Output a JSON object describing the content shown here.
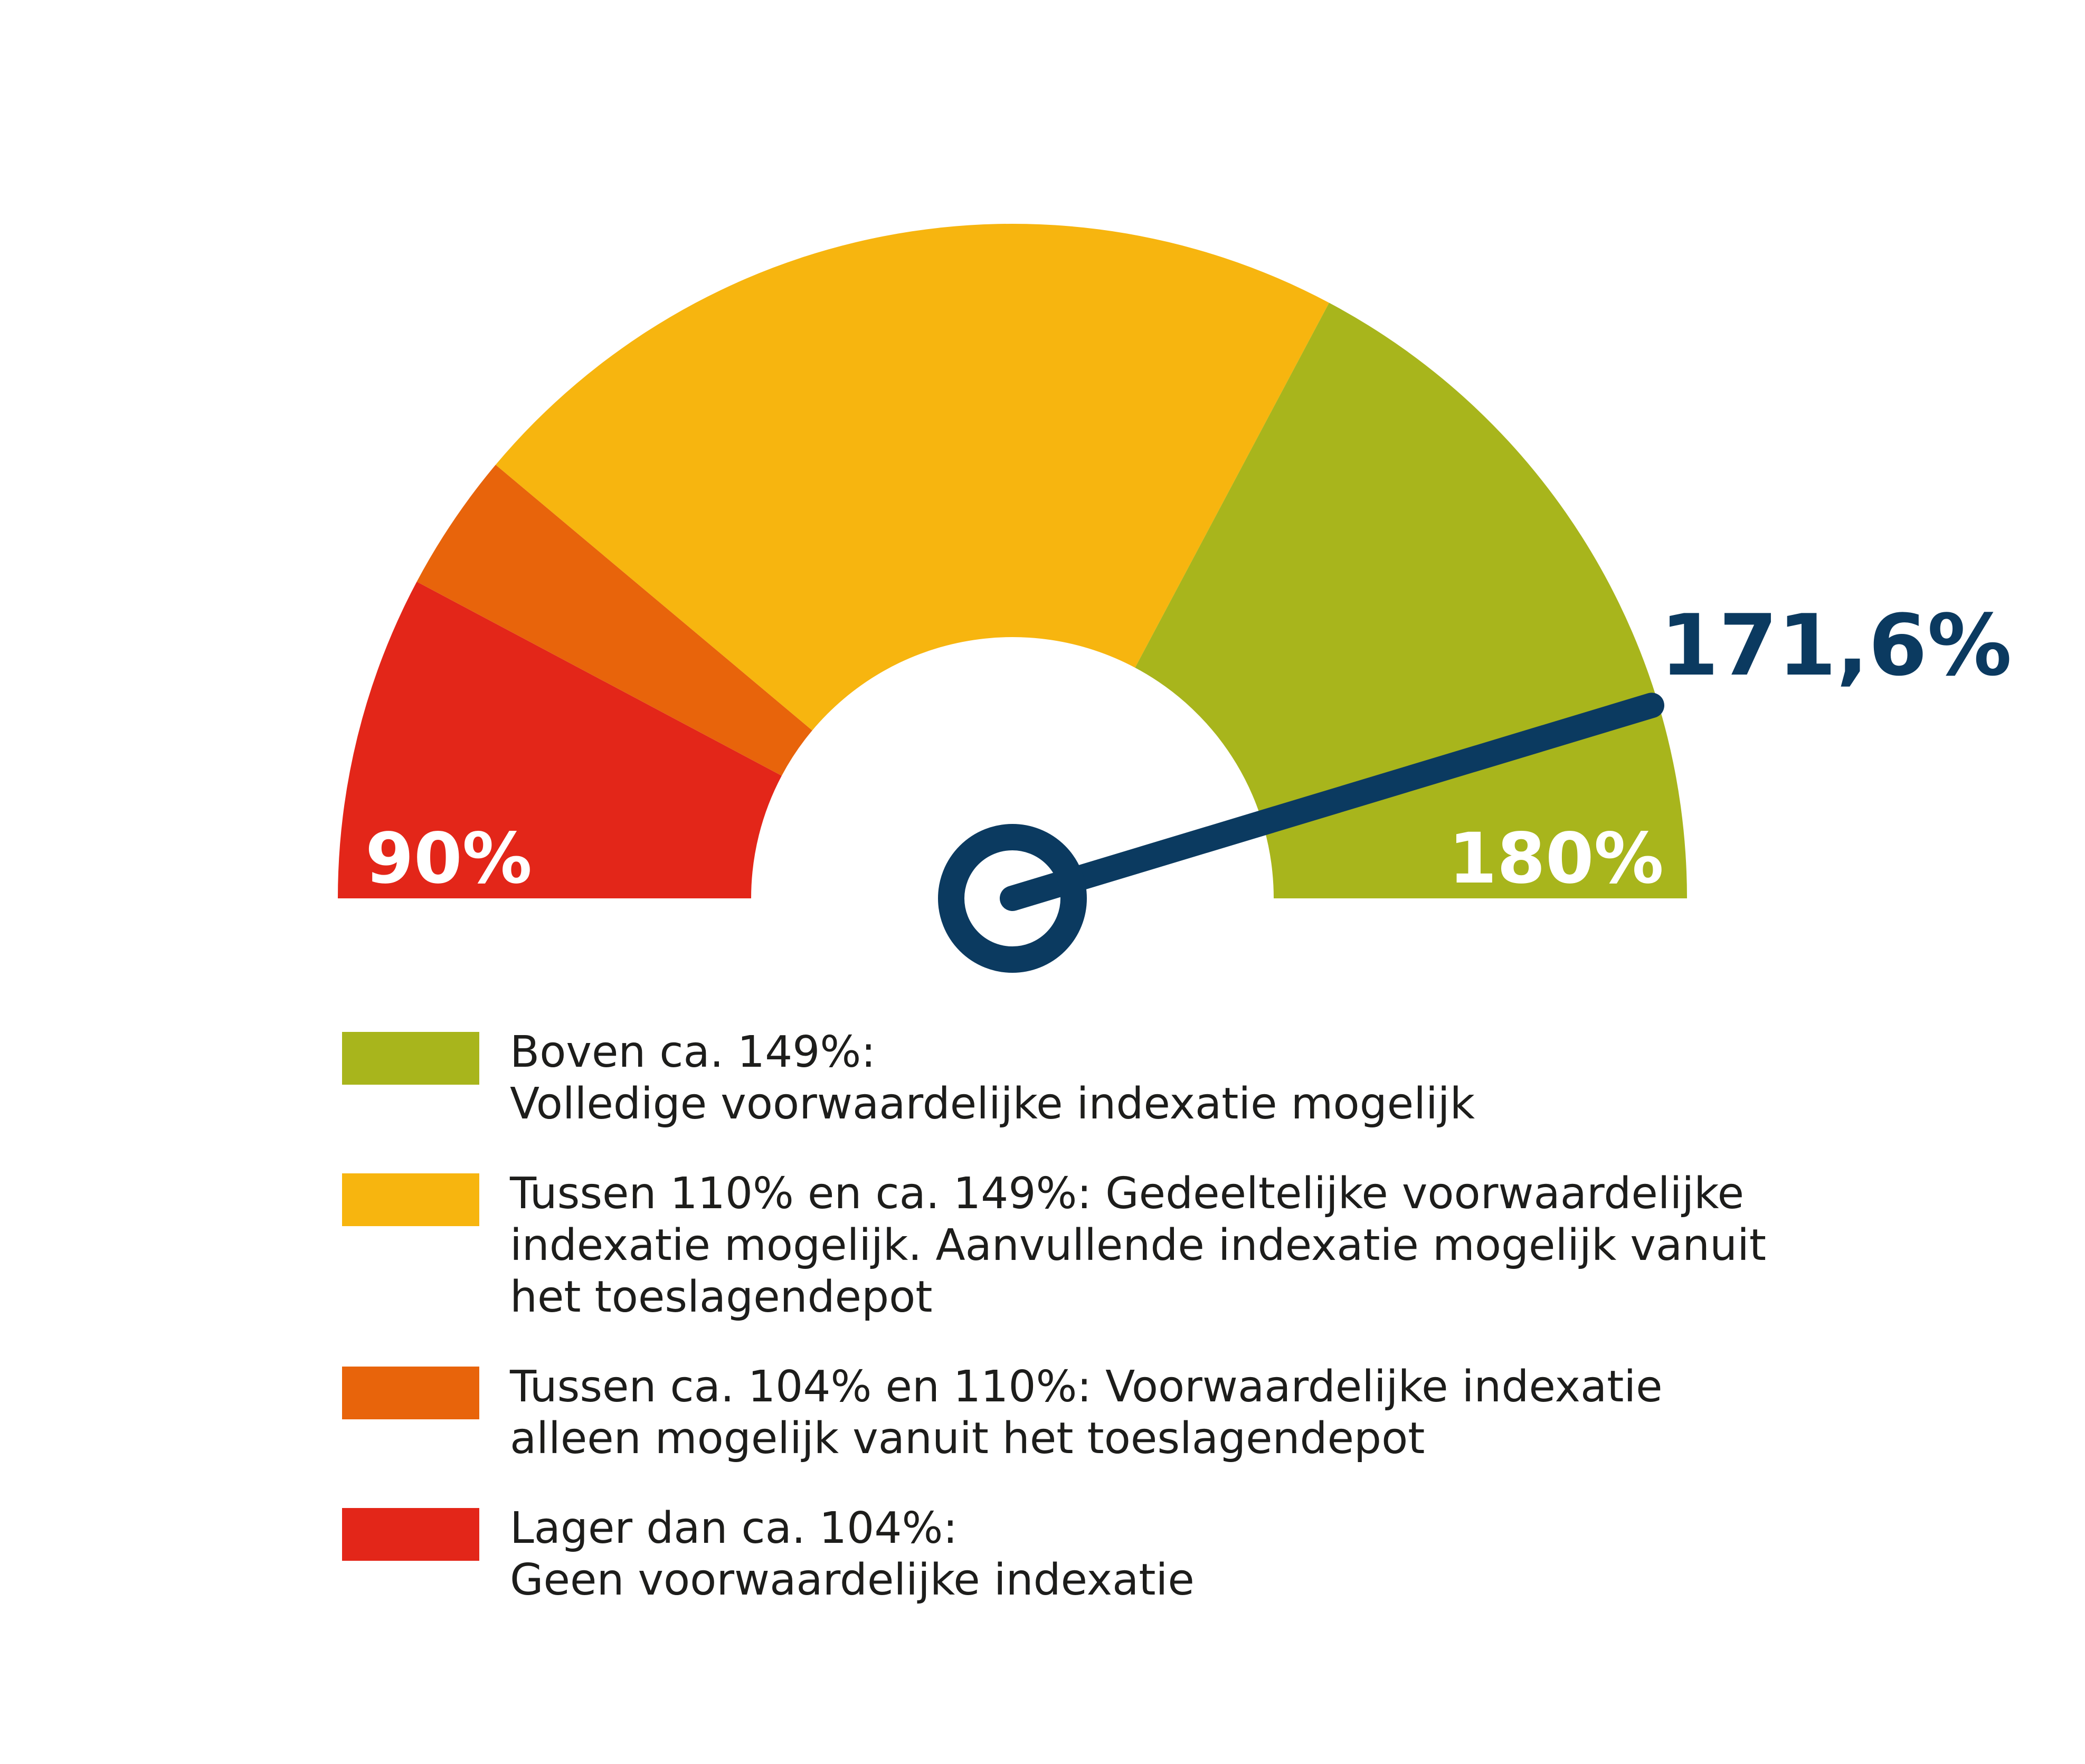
{
  "chart_data": {
    "type": "gauge",
    "min": 90,
    "max": 180,
    "min_label": "90%",
    "max_label": "180%",
    "value": 171.6,
    "value_label": "171,6%",
    "bands": [
      {
        "from": 90,
        "to": 104,
        "color": "#e32619",
        "label": "Lager dan ca. 104%:\nGeen voorwaardelijke indexatie"
      },
      {
        "from": 104,
        "to": 110,
        "color": "#e8640b",
        "label": "Tussen ca. 104% en 110%: Voorwaardelijke indexatie\nalleen mogelijk vanuit het toeslagendepot"
      },
      {
        "from": 110,
        "to": 149,
        "color": "#f7b50f",
        "label": "Tussen 110% en ca. 149%: Gedeeltelijke voorwaardelijke\nindexatie mogelijk. Aanvullende indexatie mogelijk vanuit\nhet toeslagendepot"
      },
      {
        "from": 149,
        "to": 180,
        "color": "#a8b51c",
        "label": "Boven ca. 149%:\nVolledige voorwaardelijke indexatie mogelijk"
      }
    ],
    "needle_color": "#0b3a60",
    "label_color": "#ffffff"
  },
  "legend": [
    {
      "color": "#a8b51c",
      "text": "Boven ca. 149%:\nVolledige voorwaardelijke indexatie mogelijk"
    },
    {
      "color": "#f7b50f",
      "text": "Tussen 110% en ca. 149%: Gedeeltelijke voorwaardelijke\nindexatie mogelijk. Aanvullende indexatie mogelijk vanuit\nhet toeslagendepot"
    },
    {
      "color": "#e8640b",
      "text": "Tussen ca. 104% en 110%: Voorwaardelijke indexatie\nalleen mogelijk vanuit het toeslagendepot"
    },
    {
      "color": "#e32619",
      "text": "Lager dan ca. 104%:\nGeen voorwaardelijke indexatie"
    }
  ]
}
